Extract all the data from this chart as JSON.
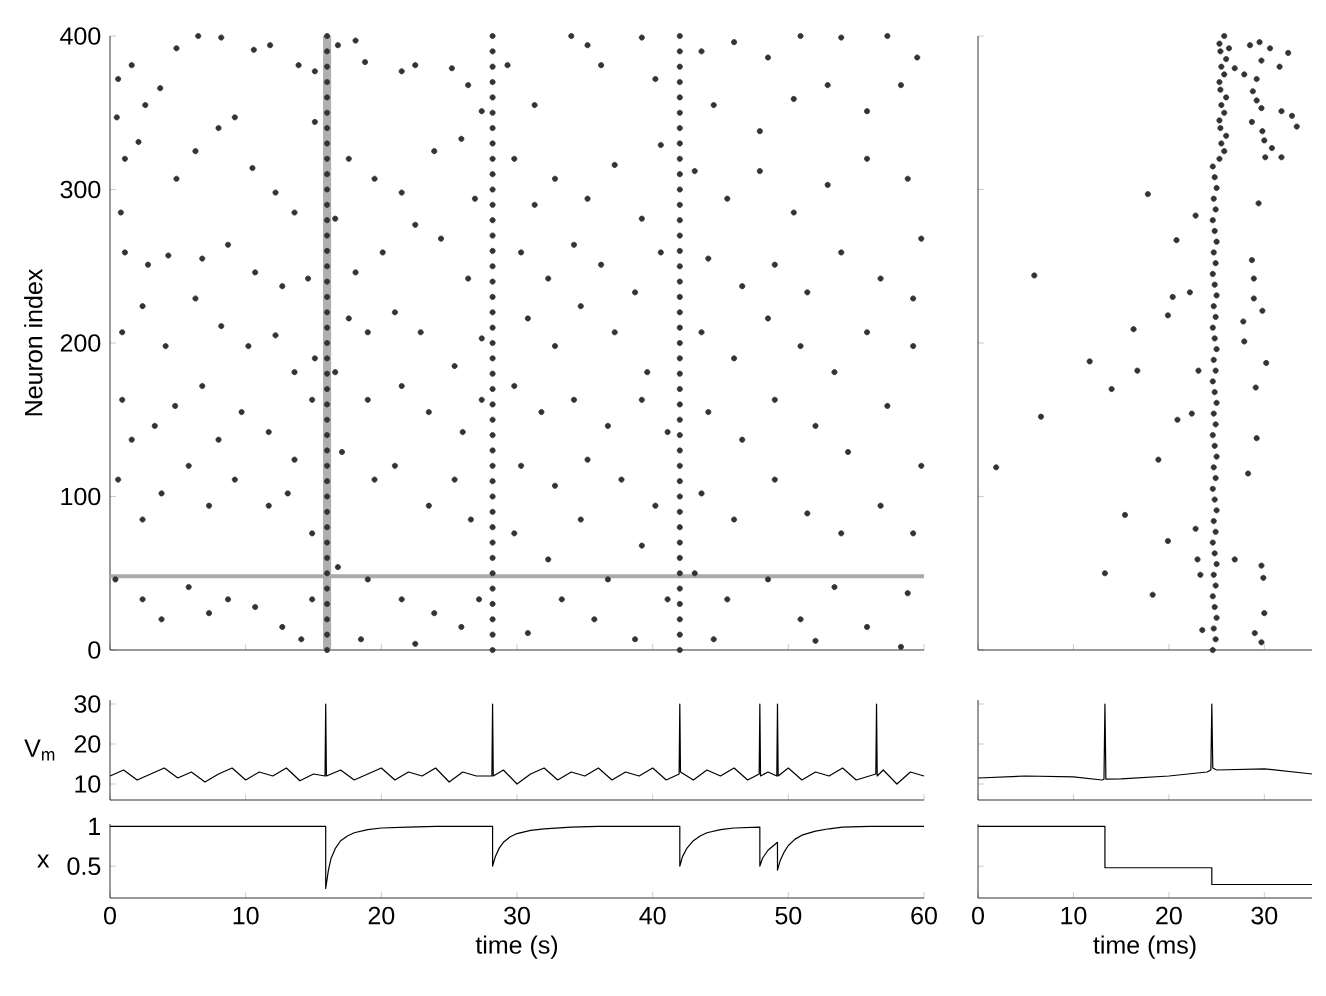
{
  "chart_data": [
    {
      "type": "scatter",
      "ylabel": "Neuron index",
      "xlim": [
        0,
        60
      ],
      "ylim": [
        0,
        400
      ],
      "xticks": [
        0,
        10,
        20,
        30,
        40,
        50,
        60
      ],
      "yticks": [
        0,
        100,
        200,
        300,
        400
      ],
      "tick_labels": "y",
      "marker": "circle",
      "color": "#333333",
      "ref_lines": [
        {
          "axis": "y",
          "value": 48,
          "color": "#aaaaaa"
        }
      ],
      "bands": [
        {
          "axis": "x",
          "from": 15.7,
          "to": 16.3,
          "color": "#b0b0b0"
        }
      ],
      "x": [
        0.5,
        0.6,
        1.6,
        1.1,
        0.8,
        2.1,
        2.6,
        3.7,
        4.9,
        6.5,
        8.2,
        10.6,
        11.8,
        13.9,
        15.1,
        4.9,
        6.3,
        8.0,
        9.2,
        10.5,
        12.2,
        13.6,
        15.1,
        1.1,
        2.8,
        4.3,
        6.8,
        8.7,
        10.7,
        12.7,
        14.6,
        0.9,
        2.4,
        4.1,
        6.3,
        8.2,
        10.2,
        12.2,
        13.6,
        15.1,
        0.9,
        1.6,
        3.3,
        4.8,
        6.8,
        8.0,
        9.7,
        11.7,
        13.6,
        14.9,
        0.6,
        2.4,
        3.8,
        5.8,
        7.3,
        9.2,
        11.7,
        13.1,
        14.9,
        0.4,
        2.4,
        3.8,
        5.8,
        7.3,
        8.7,
        10.7,
        12.7,
        14.1,
        14.9,
        16.8,
        18.1,
        18.8,
        21.5,
        22.5,
        25.2,
        26.4,
        27.4,
        17.6,
        19.5,
        21.5,
        23.9,
        25.9,
        26.9,
        16.6,
        18.1,
        20.1,
        22.5,
        24.4,
        26.4,
        17.6,
        19.0,
        21.0,
        22.9,
        25.4,
        27.4,
        16.6,
        19.0,
        21.5,
        23.5,
        26.0,
        27.4,
        17.1,
        19.5,
        21.0,
        23.5,
        25.4,
        26.6,
        16.8,
        19.0,
        21.5,
        23.9,
        25.9,
        27.2,
        18.5,
        22.5,
        29.3,
        31.3,
        34.0,
        35.2,
        36.2,
        39.2,
        40.2,
        29.8,
        31.3,
        32.8,
        35.2,
        37.2,
        39.2,
        40.6,
        30.3,
        32.3,
        34.2,
        36.2,
        38.7,
        40.6,
        30.8,
        32.8,
        34.7,
        37.2,
        39.6,
        29.8,
        31.8,
        34.2,
        36.7,
        39.2,
        41.1,
        30.3,
        32.8,
        35.2,
        37.7,
        40.2,
        29.8,
        32.3,
        34.7,
        36.7,
        39.2,
        41.1,
        30.8,
        33.3,
        35.7,
        38.7,
        43.6,
        46.0,
        48.5,
        50.9,
        53.9,
        57.3,
        59.5,
        44.5,
        47.9,
        50.4,
        52.9,
        55.8,
        58.3,
        43.1,
        45.5,
        47.9,
        50.4,
        52.9,
        55.8,
        58.8,
        59.8,
        44.1,
        46.6,
        49.0,
        51.4,
        53.9,
        56.8,
        59.2,
        43.6,
        46.0,
        48.5,
        50.9,
        53.4,
        55.8,
        59.2,
        44.1,
        46.6,
        49.0,
        52.0,
        54.4,
        57.3,
        59.8,
        43.6,
        46.0,
        49.0,
        51.4,
        53.9,
        56.8,
        59.2,
        43.1,
        45.5,
        48.5,
        50.9,
        53.4,
        55.8,
        58.8,
        44.5,
        52.0,
        58.3,
        16,
        16,
        16,
        16,
        16,
        16,
        16,
        16,
        16,
        16,
        16,
        16,
        16,
        16,
        16,
        16,
        16,
        16,
        16,
        16,
        16,
        16,
        16,
        16,
        16,
        16,
        16,
        16,
        16,
        16,
        16,
        16,
        16,
        16,
        16,
        16,
        16,
        16,
        16,
        16,
        16,
        28.2,
        28.2,
        28.2,
        28.2,
        28.2,
        28.2,
        28.2,
        28.2,
        28.2,
        28.2,
        28.2,
        28.2,
        28.2,
        28.2,
        28.2,
        28.2,
        28.2,
        28.2,
        28.2,
        28.2,
        28.2,
        28.2,
        28.2,
        28.2,
        28.2,
        28.2,
        28.2,
        28.2,
        28.2,
        28.2,
        28.2,
        28.2,
        28.2,
        28.2,
        28.2,
        28.2,
        28.2,
        28.2,
        28.2,
        28.2,
        28.2,
        42,
        42,
        42,
        42,
        42,
        42,
        42,
        42,
        42,
        42,
        42,
        42,
        42,
        42,
        42,
        42,
        42,
        42,
        42,
        42,
        42,
        42,
        42,
        42,
        42,
        42,
        42,
        42,
        42,
        42,
        42,
        42,
        42,
        42,
        42,
        42,
        42,
        42,
        42,
        42,
        42
      ],
      "values": [
        347,
        372,
        381,
        320,
        285,
        331,
        355,
        366,
        392,
        400,
        399,
        391,
        394,
        381,
        377,
        307,
        325,
        340,
        347,
        314,
        298,
        285,
        344,
        259,
        251,
        257,
        255,
        264,
        246,
        237,
        242,
        207,
        224,
        198,
        229,
        211,
        198,
        205,
        181,
        190,
        163,
        137,
        146,
        159,
        172,
        137,
        155,
        142,
        124,
        163,
        111,
        85,
        102,
        120,
        94,
        111,
        94,
        102,
        76,
        46,
        33,
        20,
        41,
        24,
        33,
        28,
        15,
        7,
        33,
        394,
        397,
        383,
        377,
        381,
        379,
        368,
        351,
        320,
        307,
        298,
        325,
        333,
        294,
        281,
        246,
        259,
        277,
        268,
        242,
        216,
        207,
        220,
        207,
        185,
        203,
        181,
        163,
        172,
        155,
        142,
        163,
        129,
        111,
        120,
        94,
        111,
        85,
        54,
        46,
        33,
        24,
        15,
        33,
        7,
        4,
        381,
        355,
        400,
        394,
        381,
        399,
        372,
        320,
        290,
        307,
        294,
        316,
        281,
        329,
        259,
        242,
        264,
        251,
        233,
        259,
        216,
        198,
        224,
        207,
        181,
        172,
        155,
        163,
        146,
        163,
        142,
        120,
        107,
        124,
        111,
        94,
        76,
        59,
        85,
        46,
        68,
        33,
        11,
        33,
        20,
        7,
        390,
        396,
        386,
        400,
        399,
        400,
        386,
        355,
        338,
        359,
        368,
        351,
        368,
        312,
        294,
        312,
        285,
        303,
        320,
        307,
        268,
        255,
        237,
        251,
        233,
        259,
        242,
        229,
        207,
        190,
        216,
        198,
        181,
        207,
        198,
        155,
        137,
        163,
        146,
        129,
        159,
        120,
        102,
        85,
        111,
        89,
        76,
        94,
        76,
        50,
        33,
        46,
        20,
        41,
        15,
        37,
        7,
        6,
        2,
        0,
        10,
        20,
        30,
        40,
        50,
        60,
        70,
        80,
        90,
        100,
        110,
        120,
        130,
        140,
        150,
        160,
        170,
        180,
        190,
        200,
        210,
        220,
        230,
        240,
        250,
        260,
        270,
        280,
        290,
        300,
        310,
        320,
        330,
        340,
        350,
        360,
        370,
        380,
        390,
        400,
        0,
        10,
        20,
        30,
        40,
        50,
        60,
        70,
        80,
        90,
        100,
        110,
        120,
        130,
        140,
        150,
        160,
        170,
        180,
        190,
        200,
        210,
        220,
        230,
        240,
        250,
        260,
        270,
        280,
        290,
        300,
        310,
        320,
        330,
        340,
        350,
        360,
        370,
        380,
        390,
        400,
        0,
        10,
        20,
        30,
        40,
        50,
        60,
        70,
        80,
        90,
        100,
        110,
        120,
        130,
        140,
        150,
        160,
        170,
        180,
        190,
        200,
        210,
        220,
        230,
        240,
        250,
        260,
        270,
        280,
        290,
        300,
        310,
        320,
        330,
        340,
        350,
        360,
        370,
        380,
        390,
        400
      ]
    },
    {
      "type": "scatter",
      "xlim": [
        0,
        35
      ],
      "ylim": [
        0,
        400
      ],
      "xticks": [
        0,
        10,
        20,
        30
      ],
      "yticks": [
        0,
        100,
        200,
        300,
        400
      ],
      "tick_labels": false,
      "marker": "circle",
      "color": "#333333",
      "x": [
        1.9,
        5.9,
        6.6,
        11.7,
        13.3,
        14.0,
        15.4,
        16.3,
        16.7,
        17.8,
        18.3,
        18.9,
        19.9,
        20.4,
        20.8,
        19.9,
        20.9,
        22.2,
        22.8,
        22.4,
        22.8,
        23.0,
        23.1,
        23.3,
        26.9,
        27.8,
        27.9,
        28.3,
        28.7,
        28.9,
        28.9,
        29.1,
        29.2,
        29.4,
        29.8,
        29.7,
        29.9,
        30.0,
        30.2,
        29.0,
        29.7,
        23.5,
        28.5,
        29.5,
        30.6,
        32.5,
        31.6,
        29.7,
        29.2,
        28.8,
        29.2,
        29.7,
        31.8,
        32.9,
        33.4,
        28.7,
        29.8,
        30.0,
        30.8,
        31.8,
        30.1,
        26.9,
        26.3,
        27.9,
        24.6,
        24.9,
        24.7,
        25.0,
        24.8,
        24.6,
        24.9,
        24.7,
        25.0,
        24.8,
        24.6,
        24.9,
        24.7,
        25.0,
        24.8,
        24.6,
        24.9,
        24.7,
        25.0,
        24.8,
        24.6,
        24.9,
        24.7,
        25.0,
        24.8,
        24.6,
        24.9,
        24.7,
        25.0,
        24.8,
        24.6,
        24.9,
        24.7,
        25.0,
        24.8,
        24.6,
        24.9,
        24.7,
        25.0,
        24.8,
        24.6,
        24.9,
        24.7,
        25.0,
        24.8,
        24.6,
        25.3,
        25.8,
        25.5,
        26.0,
        25.4,
        25.3,
        25.8,
        25.5,
        26.0,
        25.4,
        25.3,
        25.8,
        25.5,
        26.0,
        25.4,
        25.3,
        25.8
      ],
      "values": [
        119,
        244,
        152,
        188,
        50,
        170,
        88,
        209,
        182,
        297,
        36,
        124,
        71,
        230,
        267,
        218,
        150,
        233,
        283,
        154,
        79,
        59,
        182,
        49,
        59,
        214,
        201,
        115,
        254,
        242,
        229,
        171,
        138,
        291,
        221,
        55,
        47,
        24,
        187,
        11,
        5,
        13,
        394,
        396,
        392,
        389,
        380,
        384,
        372,
        364,
        358,
        353,
        351,
        348,
        341,
        344,
        338,
        332,
        327,
        321,
        321,
        379,
        392,
        375,
        0,
        7,
        14,
        21,
        28,
        35,
        42,
        49,
        56,
        63,
        70,
        77,
        84,
        91,
        98,
        105,
        112,
        119,
        126,
        133,
        140,
        147,
        154,
        161,
        168,
        175,
        182,
        189,
        196,
        203,
        210,
        217,
        224,
        231,
        238,
        245,
        252,
        259,
        266,
        273,
        280,
        287,
        294,
        301,
        308,
        315,
        320,
        325,
        330,
        335,
        340,
        345,
        350,
        355,
        360,
        365,
        370,
        375,
        380,
        385,
        390,
        395,
        400
      ]
    },
    {
      "type": "line",
      "ylabel": "V$_{m}$",
      "xlim": [
        0,
        60
      ],
      "ylim": [
        6,
        31
      ],
      "xticks": [
        0,
        10,
        20,
        30,
        40,
        50,
        60
      ],
      "yticks": [
        10,
        20,
        30
      ],
      "tick_labels": "y",
      "color": "#000000",
      "x": [
        0,
        1,
        2,
        3,
        4,
        5,
        6,
        7,
        8,
        9,
        10,
        11,
        12,
        13,
        14,
        15,
        15.85,
        15.9,
        15.95,
        17,
        18,
        19,
        20,
        21,
        22,
        23,
        24,
        25,
        26,
        27,
        28.15,
        28.2,
        28.25,
        29,
        30,
        31,
        32,
        33,
        34,
        35,
        36,
        37,
        38,
        39,
        40,
        41,
        41.95,
        42,
        42.05,
        43,
        44,
        45,
        46,
        47,
        47.85,
        47.9,
        47.95,
        48.5,
        49.15,
        49.2,
        49.25,
        50,
        51,
        52,
        53,
        54,
        55,
        56.45,
        56.5,
        56.55,
        57,
        58,
        59,
        60
      ],
      "values": [
        12,
        13.5,
        11,
        12.5,
        14,
        11.5,
        13,
        10.5,
        12.5,
        14,
        11,
        13,
        12,
        14,
        10.8,
        12.5,
        12,
        30,
        12,
        13.5,
        11,
        12.5,
        14,
        11,
        13,
        12,
        14,
        10.5,
        13,
        12,
        12,
        30,
        12,
        13.5,
        10,
        12.5,
        14,
        11,
        13,
        12,
        14,
        11,
        13,
        12,
        14,
        11,
        12.5,
        30,
        13,
        11,
        13.5,
        12,
        14,
        11,
        12.5,
        30,
        12,
        13,
        12,
        30,
        12,
        14,
        11,
        13,
        12,
        14,
        11,
        12.5,
        30,
        12,
        13.5,
        10,
        13,
        12
      ]
    },
    {
      "type": "line",
      "xlim": [
        0,
        35
      ],
      "ylim": [
        6,
        31
      ],
      "xticks": [
        0,
        10,
        20,
        30
      ],
      "yticks": [
        10,
        20,
        30
      ],
      "tick_labels": false,
      "color": "#000000",
      "x": [
        0,
        5,
        10,
        13,
        13.2,
        13.3,
        13.4,
        15,
        20,
        24,
        24.4,
        24.5,
        24.6,
        25,
        30,
        35
      ],
      "values": [
        11.5,
        12,
        11.8,
        11,
        11.2,
        30,
        11.2,
        11.3,
        12,
        13,
        13.5,
        30,
        14,
        13.5,
        13.8,
        12.5
      ]
    },
    {
      "type": "line",
      "ylabel": "x",
      "xlabel": "time (s)",
      "xlim": [
        0,
        60
      ],
      "ylim": [
        0.1,
        1.03
      ],
      "xticks": [
        0,
        10,
        20,
        30,
        40,
        50,
        60
      ],
      "yticks": [
        0.5,
        1
      ],
      "color": "#000000",
      "x": [
        0,
        15.9,
        15.9,
        16.1,
        16.3,
        16.6,
        17,
        17.5,
        18,
        19,
        20,
        22,
        24,
        28.2,
        28.2,
        28.4,
        28.7,
        29,
        29.5,
        30,
        31,
        32,
        34,
        36,
        42,
        42,
        42.2,
        42.5,
        43,
        43.5,
        44,
        45,
        46,
        47.9,
        47.9,
        48.1,
        48.5,
        49.2,
        49.2,
        49.4,
        49.7,
        50,
        50.5,
        51,
        52,
        53,
        54,
        56,
        60
      ],
      "values": [
        1,
        1,
        0.22,
        0.45,
        0.6,
        0.72,
        0.82,
        0.88,
        0.92,
        0.96,
        0.98,
        0.99,
        1,
        1,
        0.5,
        0.62,
        0.73,
        0.8,
        0.87,
        0.91,
        0.95,
        0.97,
        0.99,
        1,
        1,
        0.5,
        0.62,
        0.72,
        0.82,
        0.88,
        0.92,
        0.96,
        0.98,
        0.99,
        0.5,
        0.6,
        0.7,
        0.8,
        0.45,
        0.57,
        0.68,
        0.76,
        0.84,
        0.89,
        0.94,
        0.97,
        0.99,
        1,
        1
      ]
    },
    {
      "type": "step",
      "xlabel": "time (ms)",
      "xlim": [
        0,
        35
      ],
      "ylim": [
        0.1,
        1.03
      ],
      "xticks": [
        0,
        10,
        20,
        30
      ],
      "yticks": [
        0.5,
        1
      ],
      "tick_labels": "x",
      "color": "#000000",
      "x": [
        0,
        13.3,
        24.5,
        35
      ],
      "values": [
        1,
        0.48,
        0.27,
        0.27
      ]
    }
  ]
}
